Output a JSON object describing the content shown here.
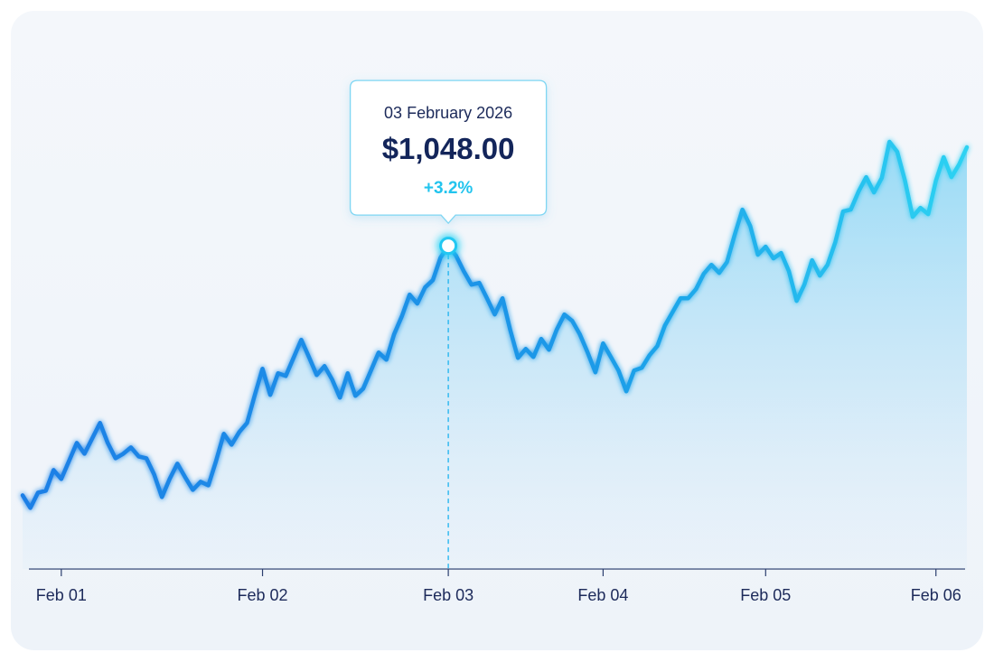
{
  "chart_data": {
    "type": "line",
    "area": true,
    "color": "#1a7fe6",
    "categories": [
      null,
      null,
      null,
      null,
      null,
      "Feb 01",
      null,
      null,
      null,
      null,
      null,
      null,
      null,
      null,
      null,
      null,
      null,
      null,
      null,
      null,
      null,
      null,
      null,
      null,
      null,
      null,
      null,
      null,
      null,
      null,
      null,
      "Feb 02",
      null,
      null,
      null,
      null,
      null,
      null,
      null,
      null,
      null,
      null,
      null,
      null,
      null,
      null,
      null,
      null,
      null,
      null,
      null,
      null,
      null,
      null,
      null,
      "Feb 03",
      null,
      null,
      null,
      null,
      null,
      null,
      null,
      null,
      null,
      null,
      null,
      null,
      null,
      null,
      null,
      null,
      null,
      null,
      null,
      "Feb 04",
      null,
      null,
      null,
      null,
      null,
      null,
      null,
      null,
      null,
      null,
      null,
      null,
      null,
      null,
      null,
      null,
      null,
      null,
      null,
      null,
      "Feb 05",
      null,
      null,
      null,
      null,
      null,
      null,
      null,
      null,
      null,
      null,
      null,
      null,
      null,
      null,
      null,
      null,
      null,
      null,
      null,
      null,
      null,
      "Feb 06",
      null,
      null,
      null,
      null
    ],
    "values": [
      937.6,
      932.0,
      938.8,
      939.6,
      948.8,
      944.8,
      952.8,
      960.8,
      956.0,
      962.8,
      969.6,
      960.8,
      954.0,
      956.0,
      958.8,
      954.8,
      954.0,
      946.8,
      936.8,
      944.8,
      951.6,
      945.6,
      940.0,
      943.6,
      942.0,
      952.8,
      964.8,
      960.0,
      965.6,
      969.6,
      982.0,
      993.6,
      982.0,
      991.6,
      990.4,
      998.4,
      1006.4,
      998.8,
      990.8,
      994.8,
      988.8,
      980.8,
      991.6,
      981.6,
      984.8,
      992.8,
      1000.8,
      997.6,
      1008.8,
      1016.8,
      1026.4,
      1022.4,
      1029.6,
      1032.8,
      1042.8,
      1048,
      1043.6,
      1036.8,
      1030.8,
      1031.6,
      1024.8,
      1017.6,
      1024.8,
      1010.8,
      998.4,
      1002.4,
      998.8,
      1006.8,
      1002.0,
      1010.8,
      1017.6,
      1014.8,
      1008.8,
      1000.8,
      992.0,
      1004.8,
      998.8,
      992.8,
      983.6,
      992.8,
      994.0,
      999.6,
      1003.6,
      1012.8,
      1018.8,
      1024.8,
      1024.8,
      1028.8,
      1035.6,
      1039.6,
      1036.0,
      1040.8,
      1052.8,
      1064.0,
      1056.8,
      1044.0,
      1047.6,
      1042.4,
      1044.8,
      1036.8,
      1023.6,
      1030.8,
      1041.6,
      1034.8,
      1039.6,
      1049.6,
      1063.2,
      1064.0,
      1072.0,
      1078.4,
      1071.6,
      1078.0,
      1094.0,
      1089.6,
      1076.8,
      1060.8,
      1064.8,
      1062.0,
      1076.8,
      1087.2,
      1078.4,
      1084.0,
      1091.6
    ],
    "ylim": [
      905,
      1100
    ],
    "tooltip": {
      "title": "03 February 2026",
      "value": 1048,
      "value_label": "$1,048.00",
      "change": 3.2,
      "change_label": "+3.2%"
    }
  }
}
